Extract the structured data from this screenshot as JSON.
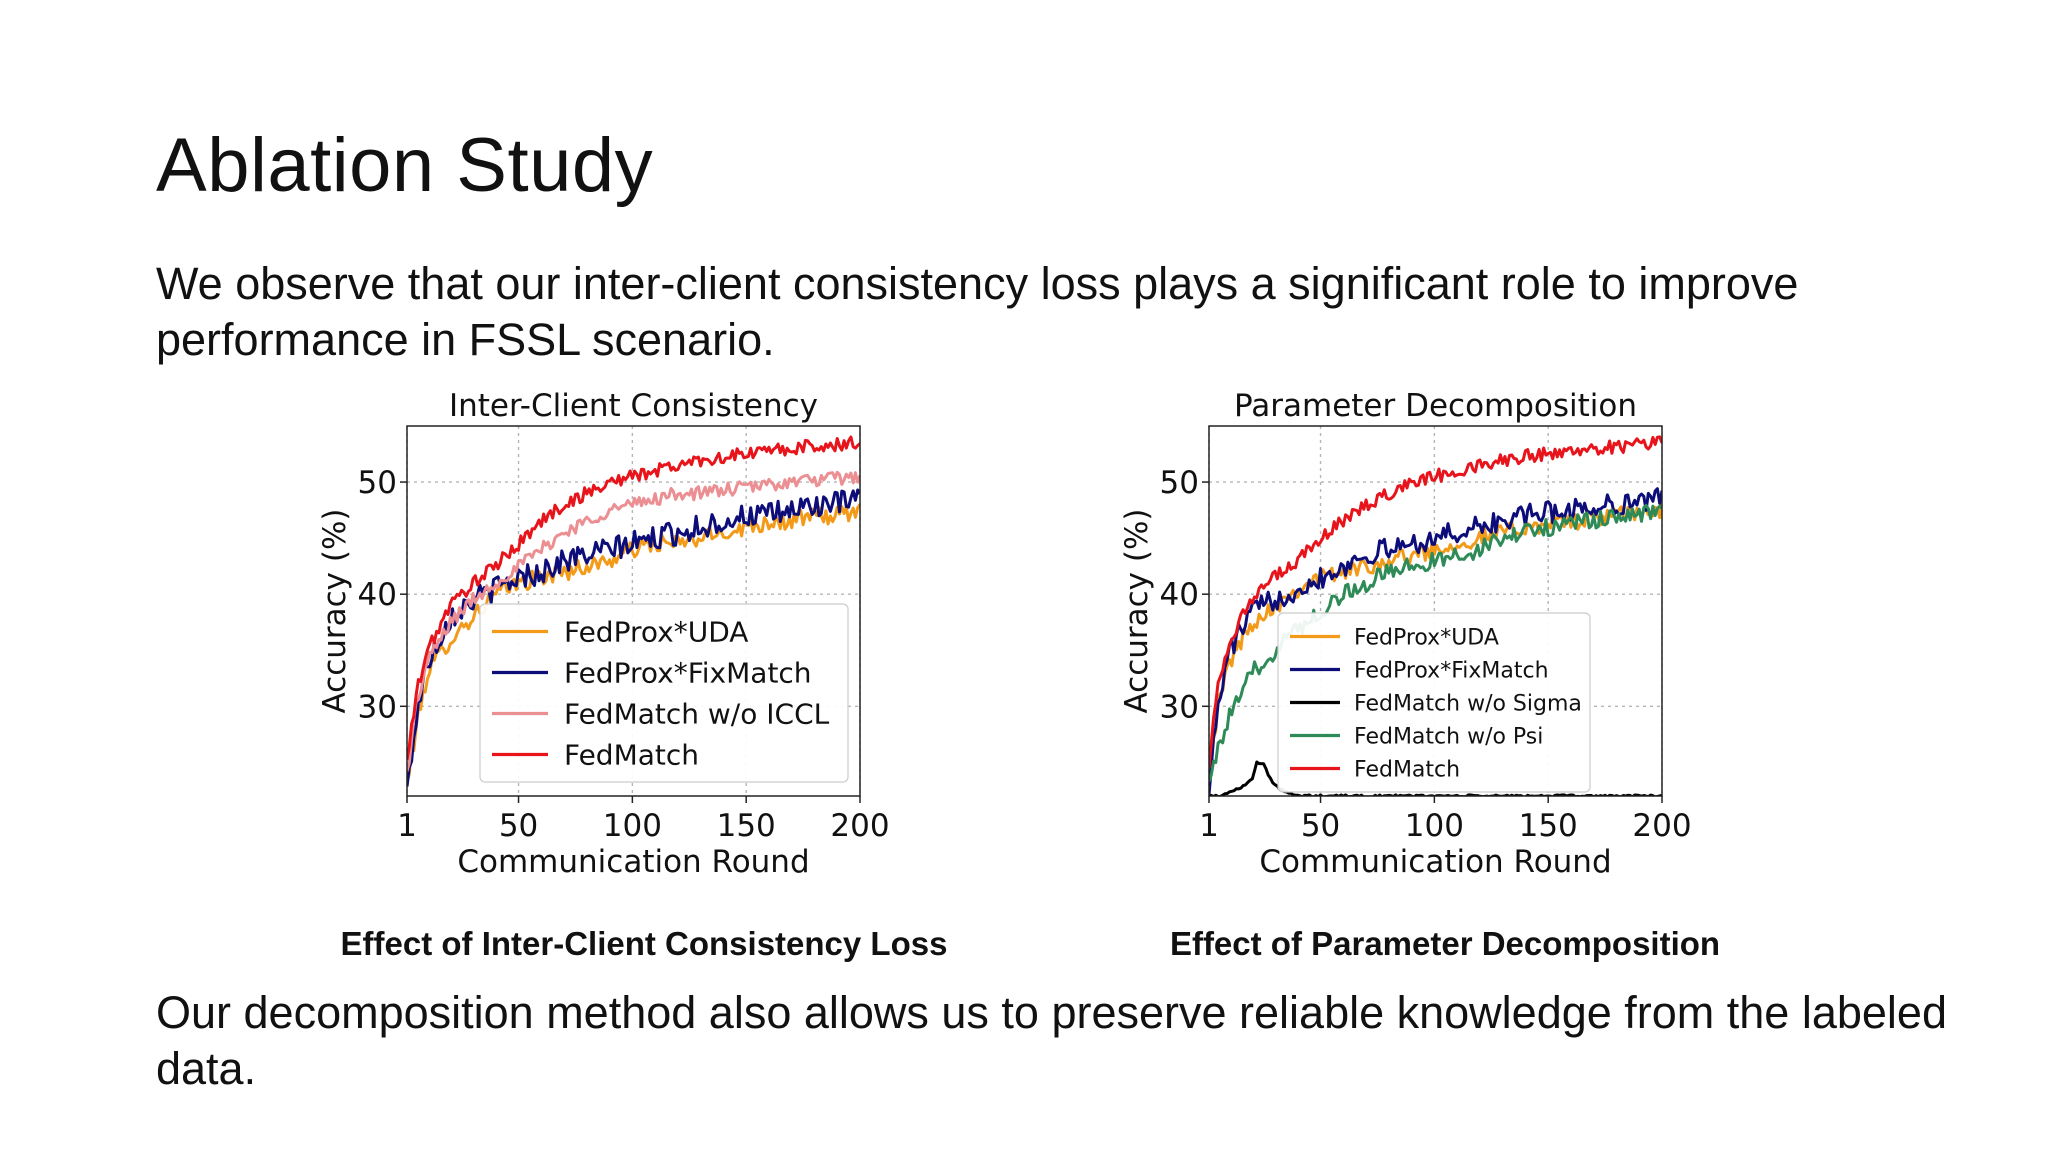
{
  "slide": {
    "title": "Ablation Study",
    "intro": "We observe that our inter-client consistency loss plays a significant role to improve performance in FSSL scenario.",
    "outro": "Our decomposition method also allows us to preserve reliable knowledge from the labeled data.",
    "captions": [
      "Effect of Inter-Client Consistency Loss",
      "Effect of Parameter Decomposition"
    ]
  },
  "colors": {
    "FedProx*UDA": "#f39a18",
    "FedProx*FixMatch": "#0d0d7a",
    "FedMatch w/o ICCL": "#ec8f93",
    "FedMatch w/o Sigma": "#000000",
    "FedMatch w/o Psi": "#2e8b57",
    "FedMatch": "#e8141b"
  },
  "chart_data": [
    {
      "type": "line",
      "title": "Inter-Client Consistency",
      "xlabel": "Communication Round",
      "ylabel": "Accuracy (%)",
      "xlim": [
        1,
        200
      ],
      "ylim": [
        22,
        55
      ],
      "xticks": [
        1,
        50,
        100,
        150,
        200
      ],
      "yticks": [
        30,
        40,
        50
      ],
      "grid": true,
      "legend_position": "lower-right",
      "legend_size": "large",
      "series": [
        {
          "name": "FedProx*UDA",
          "x": [
            1,
            5,
            10,
            20,
            30,
            40,
            50,
            60,
            70,
            80,
            90,
            100,
            110,
            120,
            130,
            140,
            150,
            160,
            170,
            180,
            190,
            200
          ],
          "y": [
            23,
            28,
            33,
            36,
            38,
            40,
            41,
            41.5,
            42,
            42.5,
            43,
            44,
            44.5,
            44.5,
            45,
            45.5,
            46,
            46.5,
            46.5,
            47,
            47,
            47.5
          ],
          "noise": 0.8
        },
        {
          "name": "FedProx*FixMatch",
          "x": [
            1,
            5,
            10,
            20,
            30,
            40,
            50,
            60,
            70,
            80,
            90,
            100,
            110,
            120,
            130,
            140,
            150,
            160,
            170,
            180,
            190,
            200
          ],
          "y": [
            22.5,
            29,
            34,
            38,
            39.5,
            40.5,
            41.5,
            42,
            43,
            43.5,
            44,
            44.5,
            45,
            45.5,
            46,
            46.5,
            47,
            47,
            47.5,
            48,
            48,
            48.5
          ],
          "noise": 1.1
        },
        {
          "name": "FedMatch w/o ICCL",
          "x": [
            1,
            5,
            10,
            20,
            30,
            40,
            50,
            60,
            70,
            80,
            90,
            100,
            110,
            120,
            130,
            140,
            150,
            160,
            170,
            180,
            190,
            200
          ],
          "y": [
            24,
            30,
            34,
            37.5,
            39.5,
            41,
            42.5,
            44,
            45.5,
            46.5,
            47.5,
            48,
            48.5,
            49,
            49,
            49.3,
            49.5,
            49.8,
            50,
            50.2,
            50.3,
            50.5
          ],
          "noise": 0.6
        },
        {
          "name": "FedMatch",
          "x": [
            1,
            5,
            10,
            20,
            30,
            40,
            50,
            60,
            70,
            80,
            90,
            100,
            110,
            120,
            130,
            140,
            150,
            160,
            170,
            180,
            190,
            200
          ],
          "y": [
            25,
            31,
            35,
            39,
            41,
            42.5,
            44.5,
            46.5,
            48,
            49,
            50,
            50.5,
            51,
            51.5,
            52,
            52.2,
            52.5,
            52.8,
            53,
            53.2,
            53.3,
            53.5
          ],
          "noise": 0.6
        }
      ]
    },
    {
      "type": "line",
      "title": "Parameter Decomposition",
      "xlabel": "Communication Round",
      "ylabel": "Accuracy (%)",
      "xlim": [
        1,
        200
      ],
      "ylim": [
        22,
        55
      ],
      "xticks": [
        1,
        50,
        100,
        150,
        200
      ],
      "yticks": [
        30,
        40,
        50
      ],
      "grid": true,
      "legend_position": "lower-right",
      "legend_size": "small",
      "series": [
        {
          "name": "FedProx*UDA",
          "x": [
            1,
            5,
            10,
            20,
            30,
            40,
            50,
            60,
            70,
            80,
            90,
            100,
            110,
            120,
            130,
            140,
            150,
            160,
            170,
            180,
            190,
            200
          ],
          "y": [
            24,
            30,
            34,
            37.5,
            39,
            40.5,
            41.5,
            42,
            42.5,
            43,
            43.5,
            44,
            44.5,
            45,
            45.5,
            46,
            46.3,
            46.5,
            46.8,
            47,
            47.2,
            47.5
          ],
          "noise": 0.8
        },
        {
          "name": "FedProx*FixMatch",
          "x": [
            1,
            5,
            10,
            20,
            30,
            40,
            50,
            60,
            70,
            80,
            90,
            100,
            110,
            120,
            130,
            140,
            150,
            160,
            170,
            180,
            190,
            200
          ],
          "y": [
            23,
            30,
            35,
            38.5,
            39.5,
            40.5,
            41.5,
            42.5,
            43.5,
            44,
            44.5,
            45,
            45.5,
            46,
            46.5,
            47,
            47.3,
            47.5,
            47.8,
            48,
            48.3,
            48.5
          ],
          "noise": 1.0
        },
        {
          "name": "FedMatch w/o Sigma",
          "x": [
            1,
            5,
            10,
            15,
            20,
            22,
            25,
            28,
            32,
            35,
            40,
            50,
            100,
            150,
            200
          ],
          "y": [
            22,
            22,
            22.3,
            22.8,
            23.5,
            25,
            24.8,
            23.5,
            22.6,
            22.3,
            22,
            22,
            22,
            22,
            22
          ],
          "noise": 0.1
        },
        {
          "name": "FedMatch w/o Psi",
          "x": [
            1,
            5,
            10,
            20,
            30,
            40,
            50,
            60,
            70,
            80,
            90,
            100,
            110,
            120,
            130,
            140,
            150,
            160,
            170,
            180,
            190,
            200
          ],
          "y": [
            24,
            26,
            29,
            33,
            35,
            37,
            38.5,
            40,
            41,
            42,
            42.5,
            43,
            43.5,
            44,
            45,
            45.5,
            46,
            46.3,
            46.5,
            47,
            47.2,
            47.5
          ],
          "noise": 0.8
        },
        {
          "name": "FedMatch",
          "x": [
            1,
            5,
            10,
            20,
            30,
            40,
            50,
            60,
            70,
            80,
            90,
            100,
            110,
            120,
            130,
            140,
            150,
            160,
            170,
            180,
            190,
            200
          ],
          "y": [
            25,
            32,
            36,
            39.5,
            41.5,
            43,
            45,
            46.5,
            48,
            49,
            50,
            50.5,
            51,
            51.5,
            52,
            52.3,
            52.5,
            52.8,
            53,
            53.2,
            53.3,
            53.5
          ],
          "noise": 0.6
        }
      ]
    }
  ]
}
